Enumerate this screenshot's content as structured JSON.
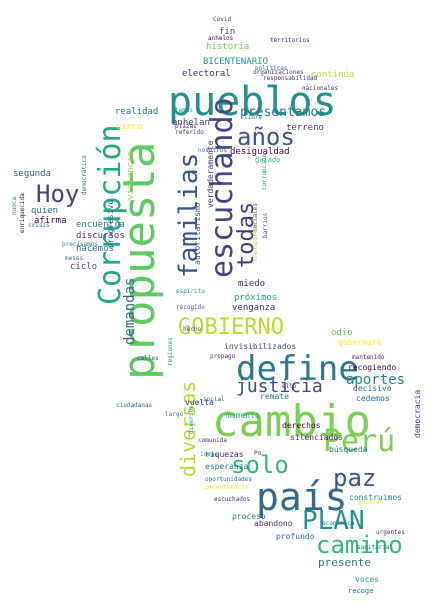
{
  "word_cloud": {
    "words": [
      {
        "text": "cambio",
        "color": "#7ad151"
      },
      {
        "text": "propuesta",
        "color": "#5ec962"
      },
      {
        "text": "pueblos",
        "color": "#21918c"
      },
      {
        "text": "país",
        "color": "#31688e"
      },
      {
        "text": "define",
        "color": "#2a788e"
      },
      {
        "text": "Corrupción",
        "color": "#22a884"
      },
      {
        "text": "Perú",
        "color": "#7ad151"
      },
      {
        "text": "escuchando",
        "color": "#414487"
      },
      {
        "text": "GOBIERNO",
        "color": "#b5de2b"
      },
      {
        "text": "PLAN",
        "color": "#21918c"
      },
      {
        "text": "camino",
        "color": "#35b779"
      },
      {
        "text": "familias",
        "color": "#3b528b"
      },
      {
        "text": "Hoy",
        "color": "#414487"
      },
      {
        "text": "años",
        "color": "#3b528b"
      },
      {
        "text": "paz",
        "color": "#3b528b"
      },
      {
        "text": "solo",
        "color": "#35b779"
      },
      {
        "text": "todas",
        "color": "#443983"
      },
      {
        "text": "diversas",
        "color": "#b5de2b"
      },
      {
        "text": "justicia",
        "color": "#3e4989"
      },
      {
        "text": "demandas",
        "color": "#31688e"
      },
      {
        "text": "aportes",
        "color": "#26828e"
      },
      {
        "text": "presentamos",
        "color": "#2a788e"
      },
      {
        "text": "presente",
        "color": "#2c728e"
      },
      {
        "text": "historia",
        "color": "#6ece58"
      },
      {
        "text": "fin",
        "color": "#3b528b"
      },
      {
        "text": "BICENTENARIO",
        "color": "#21918c"
      },
      {
        "text": "electoral",
        "color": "#472d7b"
      },
      {
        "text": "continúa",
        "color": "#b5de2b"
      },
      {
        "text": "realidad",
        "color": "#2c728e"
      },
      {
        "text": "anhelan",
        "color": "#443983"
      },
      {
        "text": "terreno",
        "color": "#443983"
      },
      {
        "text": "cinco",
        "color": "#fde725"
      },
      {
        "text": "desigualdad",
        "color": "#440154"
      },
      {
        "text": "guiado",
        "color": "#35b779"
      },
      {
        "text": "segunda",
        "color": "#3b528b"
      },
      {
        "text": "quien",
        "color": "#2a788e"
      },
      {
        "text": "afirma",
        "color": "#440154"
      },
      {
        "text": "encuentra",
        "color": "#2a788e"
      },
      {
        "text": "discursos",
        "color": "#472d7b"
      },
      {
        "text": "hacemos",
        "color": "#2c728e"
      },
      {
        "text": "ciclo",
        "color": "#3e4989"
      },
      {
        "text": "violencia",
        "color": "#a0da39"
      },
      {
        "text": "miedo",
        "color": "#482878"
      },
      {
        "text": "próximos",
        "color": "#21a585"
      },
      {
        "text": "venganza",
        "color": "#482878"
      },
      {
        "text": "odio",
        "color": "#6ece58"
      },
      {
        "text": "invisibilizados",
        "color": "#3e4989"
      },
      {
        "text": "gobernará",
        "color": "#fde725"
      },
      {
        "text": "recogiendo",
        "color": "#440154"
      },
      {
        "text": "decisivo",
        "color": "#31688e"
      },
      {
        "text": "cedemos",
        "color": "#31688e"
      },
      {
        "text": "democracia",
        "color": "#443983"
      },
      {
        "text": "remate",
        "color": "#2c728e"
      },
      {
        "text": "vuelta",
        "color": "#482878"
      },
      {
        "text": "momento",
        "color": "#22a884"
      },
      {
        "text": "derechos",
        "color": "#440154"
      },
      {
        "text": "silenciados",
        "color": "#482878"
      },
      {
        "text": "búsqueda",
        "color": "#2a788e"
      },
      {
        "text": "riquezas",
        "color": "#482878"
      },
      {
        "text": "esperanza",
        "color": "#2a788e"
      },
      {
        "text": "construimos",
        "color": "#26828e"
      },
      {
        "text": "proceso",
        "color": "#2a788e"
      },
      {
        "text": "abandono",
        "color": "#472d7b"
      },
      {
        "text": "profundo",
        "color": "#2c728e"
      },
      {
        "text": "voces",
        "color": "#21a585"
      },
      {
        "text": "recoge",
        "color": "#2c728e"
      },
      {
        "text": "autoritarismo",
        "color": "#3b528b"
      },
      {
        "text": "verdaderamente",
        "color": "#472d7b"
      },
      {
        "text": "progresivo",
        "color": "#3b528b"
      },
      {
        "text": "democrático",
        "color": "#31688e"
      },
      {
        "text": "Covid",
        "color": "#3e4989"
      },
      {
        "text": "anhelos",
        "color": "#440154"
      },
      {
        "text": "territorios",
        "color": "#482878"
      },
      {
        "text": "políticas",
        "color": "#31688e"
      },
      {
        "text": "responsabilidad",
        "color": "#472d7b"
      },
      {
        "text": "nacionales",
        "color": "#472d7b"
      },
      {
        "text": "libre",
        "color": "#2c728e"
      },
      {
        "text": "referido",
        "color": "#443983"
      },
      {
        "text": "corrupción",
        "color": "#21918c"
      },
      {
        "text": "barrios",
        "color": "#31688e"
      },
      {
        "text": "sociales",
        "color": "#31688e"
      },
      {
        "text": "transparencia",
        "color": "#b5de2b"
      },
      {
        "text": "crisis",
        "color": "#2a788e"
      },
      {
        "text": "enriquecida",
        "color": "#440154"
      },
      {
        "text": "precisamos",
        "color": "#2a788e"
      },
      {
        "text": "meses",
        "color": "#2c728e"
      },
      {
        "text": "nunca",
        "color": "#2a788e"
      },
      {
        "text": "calles",
        "color": "#3e4989"
      },
      {
        "text": "recogido",
        "color": "#3b528b"
      },
      {
        "text": "hecho",
        "color": "#3b528b"
      },
      {
        "text": "espíritu",
        "color": "#21918c"
      },
      {
        "text": "ciudadanas",
        "color": "#2c728e"
      },
      {
        "text": "diversos",
        "color": "#21918c"
      },
      {
        "text": "comunida",
        "color": "#482878"
      },
      {
        "text": "ideas",
        "color": "#21918c"
      },
      {
        "text": "oportunidades",
        "color": "#2c728e"
      },
      {
        "text": "bicentenario",
        "color": "#fde725"
      },
      {
        "text": "escuchados",
        "color": "#482878"
      },
      {
        "text": "urgentes",
        "color": "#482878"
      },
      {
        "text": "sanitaria",
        "color": "#2c728e"
      },
      {
        "text": "económica",
        "color": "#2c728e"
      },
      {
        "text": "organizaciones",
        "color": "#482878"
      },
      {
        "text": "mantenido",
        "color": "#482878"
      },
      {
        "text": "propago",
        "color": "#482878"
      },
      {
        "text": "Po",
        "color": "#482878"
      },
      {
        "text": "quieran",
        "color": "#fde725"
      },
      {
        "text": "largo",
        "color": "#2c728e"
      },
      {
        "text": "social",
        "color": "#2c728e"
      },
      {
        "text": "ello",
        "color": "#482878"
      },
      {
        "text": "plazas",
        "color": "#482878"
      },
      {
        "text": "nosotros",
        "color": "#2c728e"
      },
      {
        "text": "temas",
        "color": "#21918c"
      },
      {
        "text": "regiones",
        "color": "#21918c"
      }
    ]
  }
}
